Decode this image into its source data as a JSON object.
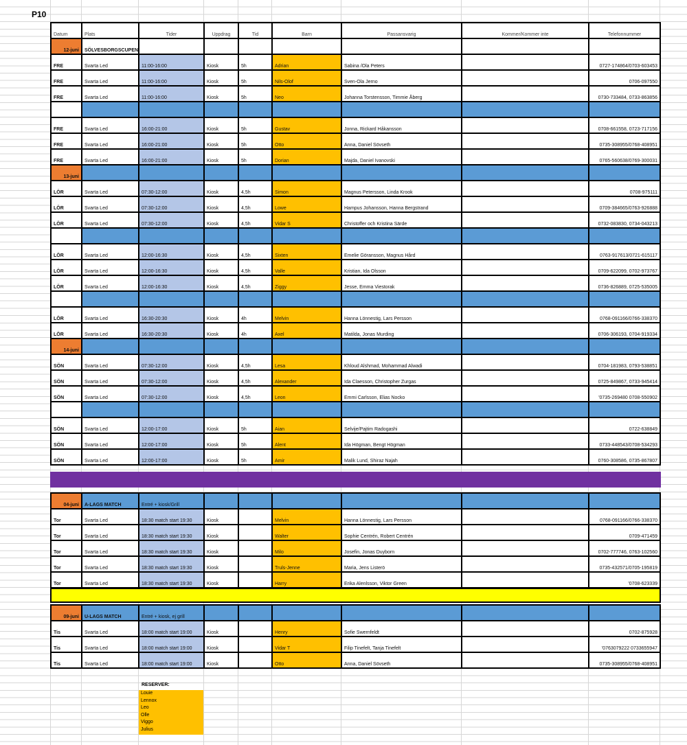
{
  "title": "P10",
  "header": [
    "Datum",
    "Plats",
    "Tider",
    "Uppdrag",
    "Tid",
    "Barn",
    "Passansvarig",
    "Kommer/Kommer inte",
    "Telefonnummer"
  ],
  "sections": [
    {
      "date": "12-juni",
      "label": "SÖLVESBORGSCUPEN",
      "groups": [
        [
          [
            "FRE",
            "Svarta Led",
            "11:00-16:00",
            "Kiosk",
            "5h",
            "Adrian",
            "Sabina /Ola Peters",
            "0727-174864/0703-603453"
          ],
          [
            "FRE",
            "Svarta Led",
            "11:00-16:00",
            "Kiosk",
            "5h",
            "Nils-Olof",
            "Sven-Ola Jerno",
            "0706-097550"
          ],
          [
            "FRE",
            "Svarta Led",
            "11:00-16:00",
            "Kiosk",
            "5h",
            "Neo",
            "Johanna Torstensson, Timmie Åberg",
            "0730-733484, 0733-863856"
          ]
        ],
        [
          [
            "FRE",
            "Svarta Led",
            "16:00-21:00",
            "Kiosk",
            "5h",
            "Gustav",
            "Jonna, Rickard Håkansson",
            "0708-661558, 0723-717156"
          ],
          [
            "FRE",
            "Svarta Led",
            "16:00-21:00",
            "Kiosk",
            "5h",
            "Otto",
            "Anna, Daniel Sövseth",
            "0735-308955/0768-408951"
          ],
          [
            "FRE",
            "Svarta Led",
            "16:00-21:00",
            "Kiosk",
            "5h",
            "Dorian",
            "Majda, Daniel Ivanovski",
            "0765-560638/0769-300031"
          ]
        ]
      ]
    },
    {
      "date": "13-juni",
      "groups": [
        [
          [
            "LÖR",
            "Svarta Led",
            "07:30-12:00",
            "Kiosk",
            "4,5h",
            "Simon",
            "Magnus Petersson, Linda Krook",
            "0708-975111"
          ],
          [
            "LÖR",
            "Svarta Led",
            "07:30-12:00",
            "Kiosk",
            "4,5h",
            "Lowe",
            "Hampus Johansson, Hanna Bergstrand",
            "0709-384665/0763-926888"
          ],
          [
            "LÖR",
            "Svarta Led",
            "07:30-12:00",
            "Kiosk",
            "4,5h",
            "Vidar S",
            "Christoffer och Kristina Särde",
            "0732-083830, 0734-043213"
          ]
        ],
        [
          [
            "LÖR",
            "Svarta Led",
            "12:00-16:30",
            "Kiosk",
            "4,5h",
            "Sixten",
            "Emelie Göransson, Magnus Hård",
            "0763-917613/0721-615117"
          ],
          [
            "LÖR",
            "Svarta Led",
            "12:00-16:30",
            "Kiosk",
            "4,5h",
            "Valle",
            "Kristian, Ida Olsson",
            "0709-622099, 0702-973767"
          ],
          [
            "LÖR",
            "Svarta Led",
            "12:00-16:30",
            "Kiosk",
            "4,5h",
            "Ziggy",
            "Jesse, Emma Viestorak",
            "0736-826889, 0725-535005"
          ]
        ],
        [
          [
            "LÖR",
            "Svarta Led",
            "16:30-20:30",
            "Kiosk",
            "4h",
            "Melvin",
            "Hanna Lönnestig, Lars Persson",
            "0768-091166/0766-338370"
          ],
          [
            "LÖR",
            "Svarta Led",
            "16:30-20:30",
            "Kiosk",
            "4h",
            "Axel",
            "Matilda, Jonas Murding",
            "0706-306193, 0704-919334"
          ]
        ]
      ]
    },
    {
      "date": "14-juni",
      "groups": [
        [
          [
            "SÖN",
            "Svarta Led",
            "07:30-12:00",
            "Kiosk",
            "4,5h",
            "Lesa",
            "Khloud Alshmad, Mohammad Alwadi",
            "0704-181983, 0793-538851"
          ],
          [
            "SÖN",
            "Svarta Led",
            "07:30-12:00",
            "Kiosk",
            "4,5h",
            "Alexander",
            "Ida Claesson, Christopher Zurgas",
            "0725-849867, 0733-945414"
          ],
          [
            "SÖN",
            "Svarta Led",
            "07:30-12:00",
            "Kiosk",
            "4,5h",
            "Leon",
            "Emmi Carlsson, Elias Nocko",
            "'0735-269480 0708-550902"
          ]
        ],
        [
          [
            "SÖN",
            "Svarta Led",
            "12:00-17:00",
            "Kiosk",
            "5h",
            "Aian",
            "Selvije/Pajtim Radogashi",
            "0722-638849"
          ],
          [
            "SÖN",
            "Svarta Led",
            "12:00-17:00",
            "Kiosk",
            "5h",
            "Alent",
            "Ida Högman, Bengt Högman",
            "0733-448543/0708-534293"
          ],
          [
            "SÖN",
            "Svarta Led",
            "12:00-17:00",
            "Kiosk",
            "5h",
            "Amir",
            "Malik Lund, Shiraz Najah",
            "0760-308586, 0735-867807"
          ]
        ]
      ]
    }
  ],
  "matches": [
    {
      "date": "04-juni",
      "label": "A-LAGS MATCH",
      "note": "Entré + kiosk/Grill",
      "rows": [
        [
          "Tor",
          "Svarta Led",
          "18:30 match start 19:30",
          "Kiosk",
          "Melvin",
          "Hanna Lönnestig, Lars Persson",
          "0768-091166/0766-338370"
        ],
        [
          "Tor",
          "Svarta Led",
          "18:30 match start 19:30",
          "Kiosk",
          "Walter",
          "Sophie Centrén, Robert Centrén",
          "0709-471459"
        ],
        [
          "Tor",
          "Svarta Led",
          "18:30 match start 19:30",
          "Kiosk",
          "Milo",
          "Josefin, Jonas Duyborn",
          "0702-777746, 0763-102560"
        ],
        [
          "Tor",
          "Svarta Led",
          "18:30 match start 19:30",
          "Kiosk",
          "Truls-Jenne",
          "Maria, Jens Listerö",
          "0735-432571/0705-195819"
        ],
        [
          "Tor",
          "Svarta Led",
          "18:30 match start 19:30",
          "Kiosk",
          "Harry",
          "Erika Alenlsson, Viktor Green",
          "'0708-623339"
        ]
      ]
    },
    {
      "date": "09-juni",
      "label": "U-LAGS MATCH",
      "note": "Entré + kiosk, ej grill",
      "rows": [
        [
          "Tis",
          "Svarta Led",
          "18:00 match start 19:00",
          "Kiosk",
          "Henry",
          "Sofie Swernfeldt",
          "0702-875928"
        ],
        [
          "Tis",
          "Svarta Led",
          "18:00 match start 19:00",
          "Kiosk",
          "Vidar T",
          "Filip Tinefelt, Tanja Tinefelt",
          "'0763079222 0733655947"
        ],
        [
          "Tis",
          "Svarta Led",
          "18:00 match start 19:00",
          "Kiosk",
          "Otto",
          "Anna, Daniel Sövseth",
          "0735-308955/0768-408951"
        ]
      ]
    }
  ],
  "reserves": {
    "title": "RESERVER:",
    "names": [
      "Louie",
      "Lennox",
      "Leo",
      "Olle",
      "Viggo",
      "Julius"
    ]
  }
}
